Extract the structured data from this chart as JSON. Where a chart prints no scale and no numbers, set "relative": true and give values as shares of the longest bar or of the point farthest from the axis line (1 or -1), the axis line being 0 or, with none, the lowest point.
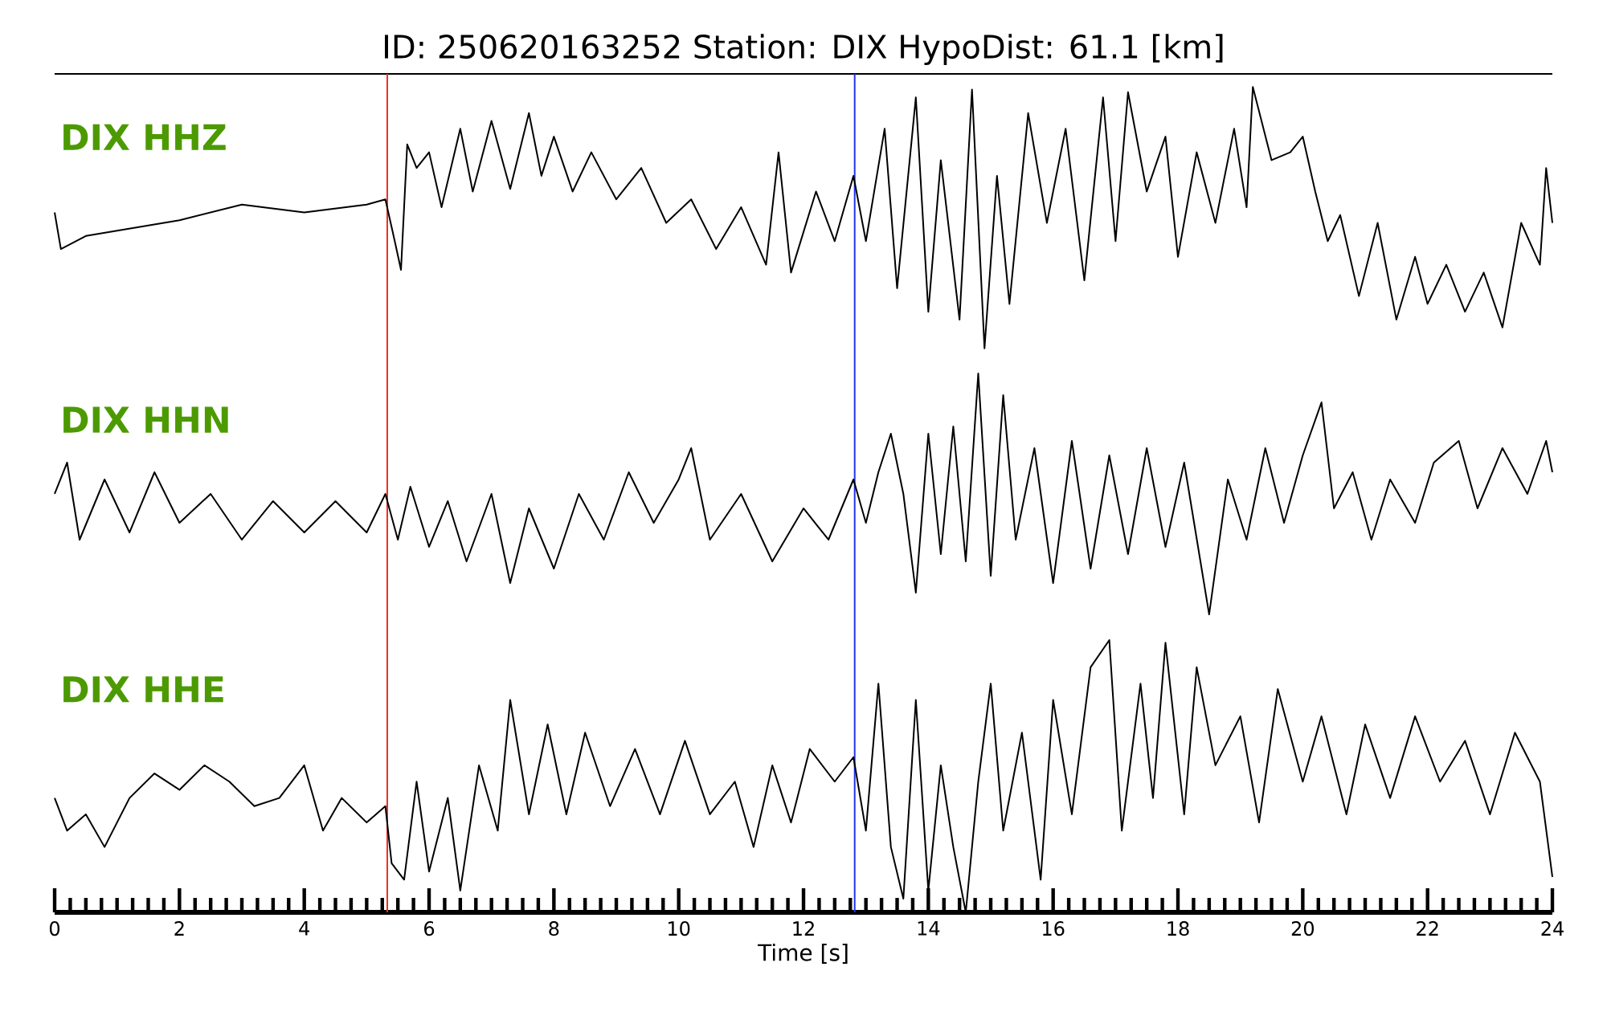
{
  "chart_data": [
    {
      "type": "line",
      "relative": true,
      "title": "ID: 250620163252   Station: DIX   HypoDist:    61.1 [km]",
      "xlim": [
        0,
        24
      ],
      "tick_labels": false,
      "series": [
        {
          "name": "DIX HHZ",
          "color": "#000000",
          "x": [
            0,
            0.1,
            0.5,
            1,
            2,
            3,
            4,
            5,
            5.3,
            5.45,
            5.55,
            5.65,
            5.8,
            6.0,
            6.2,
            6.5,
            6.7,
            7.0,
            7.3,
            7.6,
            7.8,
            8.0,
            8.3,
            8.6,
            9.0,
            9.4,
            9.8,
            10.2,
            10.6,
            11.0,
            11.4,
            11.6,
            11.8,
            12.2,
            12.5,
            12.8,
            13.0,
            13.3,
            13.5,
            13.8,
            14.0,
            14.2,
            14.5,
            14.7,
            14.9,
            15.1,
            15.3,
            15.6,
            15.9,
            16.2,
            16.5,
            16.8,
            17.0,
            17.2,
            17.5,
            17.8,
            18.0,
            18.3,
            18.6,
            18.9,
            19.1,
            19.2,
            19.5,
            19.8,
            20.0,
            20.2,
            20.4,
            20.6,
            20.9,
            21.2,
            21.5,
            21.8,
            22.0,
            22.3,
            22.6,
            22.9,
            23.2,
            23.5,
            23.8,
            23.9,
            24.0
          ],
          "values": [
            0.52,
            0.38,
            0.43,
            0.45,
            0.49,
            0.55,
            0.52,
            0.55,
            0.57,
            0.41,
            0.3,
            0.78,
            0.69,
            0.75,
            0.54,
            0.84,
            0.6,
            0.87,
            0.61,
            0.9,
            0.66,
            0.81,
            0.6,
            0.75,
            0.57,
            0.69,
            0.48,
            0.57,
            0.38,
            0.54,
            0.32,
            0.75,
            0.29,
            0.6,
            0.41,
            0.66,
            0.41,
            0.84,
            0.23,
            0.96,
            0.14,
            0.72,
            0.11,
            0.99,
            0,
            0.66,
            0.17,
            0.9,
            0.48,
            0.84,
            0.26,
            0.96,
            0.41,
            0.98,
            0.6,
            0.81,
            0.35,
            0.75,
            0.48,
            0.84,
            0.54,
            1,
            0.72,
            0.75,
            0.81,
            0.6,
            0.41,
            0.51,
            0.2,
            0.48,
            0.11,
            0.35,
            0.17,
            0.32,
            0.14,
            0.29,
            0.08,
            0.48,
            0.32,
            0.69,
            0.48
          ]
        }
      ],
      "ref_lines": [
        {
          "axis": "x",
          "value": 5.33,
          "color": "#e8302a"
        },
        {
          "axis": "x",
          "value": 12.82,
          "color": "#2233ee"
        }
      ]
    },
    {
      "type": "line",
      "relative": true,
      "xlim": [
        0,
        24
      ],
      "tick_labels": false,
      "series": [
        {
          "name": "DIX HHN",
          "color": "#000000",
          "x": [
            0,
            0.2,
            0.4,
            0.8,
            1.2,
            1.6,
            2.0,
            2.5,
            3.0,
            3.5,
            4.0,
            4.5,
            5.0,
            5.3,
            5.5,
            5.7,
            6.0,
            6.3,
            6.6,
            7.0,
            7.3,
            7.6,
            8.0,
            8.4,
            8.8,
            9.2,
            9.6,
            10.0,
            10.2,
            10.5,
            11.0,
            11.5,
            12.0,
            12.4,
            12.8,
            13.0,
            13.2,
            13.4,
            13.6,
            13.8,
            14.0,
            14.2,
            14.4,
            14.6,
            14.8,
            15.0,
            15.2,
            15.4,
            15.7,
            16.0,
            16.3,
            16.6,
            16.9,
            17.2,
            17.5,
            17.8,
            18.1,
            18.5,
            18.8,
            19.1,
            19.4,
            19.7,
            20.0,
            20.3,
            20.5,
            20.8,
            21.1,
            21.4,
            21.8,
            22.1,
            22.5,
            22.8,
            23.2,
            23.6,
            23.9,
            24.0
          ],
          "values": [
            0.5,
            0.63,
            0.31,
            0.56,
            0.34,
            0.59,
            0.38,
            0.5,
            0.31,
            0.47,
            0.34,
            0.47,
            0.34,
            0.5,
            0.31,
            0.53,
            0.28,
            0.47,
            0.22,
            0.5,
            0.13,
            0.44,
            0.19,
            0.5,
            0.31,
            0.59,
            0.38,
            0.56,
            0.69,
            0.31,
            0.5,
            0.22,
            0.44,
            0.31,
            0.56,
            0.38,
            0.59,
            0.75,
            0.5,
            0.09,
            0.75,
            0.25,
            0.78,
            0.22,
            1,
            0.16,
            0.91,
            0.31,
            0.69,
            0.13,
            0.72,
            0.19,
            0.66,
            0.25,
            0.69,
            0.28,
            0.63,
            0,
            0.56,
            0.31,
            0.69,
            0.38,
            0.66,
            0.88,
            0.44,
            0.59,
            0.31,
            0.56,
            0.38,
            0.63,
            0.72,
            0.44,
            0.69,
            0.5,
            0.72,
            0.59
          ]
        }
      ],
      "ref_lines": [
        {
          "axis": "x",
          "value": 5.33,
          "color": "#e8302a"
        },
        {
          "axis": "x",
          "value": 12.82,
          "color": "#2233ee"
        }
      ]
    },
    {
      "type": "line",
      "relative": true,
      "xlabel": "Time [s]",
      "xlim": [
        0,
        24
      ],
      "tick_labels": "x",
      "xticks": [
        0,
        {
          "value": 0.25,
          "label": null
        },
        {
          "value": 0.5,
          "label": null
        },
        {
          "value": 0.75,
          "label": null
        },
        {
          "value": 1,
          "label": null
        },
        {
          "value": 1.25,
          "label": null
        },
        {
          "value": 1.5,
          "label": null
        },
        {
          "value": 1.75,
          "label": null
        },
        2,
        {
          "value": 2.25,
          "label": null
        },
        {
          "value": 2.5,
          "label": null
        },
        {
          "value": 2.75,
          "label": null
        },
        {
          "value": 3,
          "label": null
        },
        {
          "value": 3.25,
          "label": null
        },
        {
          "value": 3.5,
          "label": null
        },
        {
          "value": 3.75,
          "label": null
        },
        4,
        {
          "value": 4.25,
          "label": null
        },
        {
          "value": 4.5,
          "label": null
        },
        {
          "value": 4.75,
          "label": null
        },
        {
          "value": 5,
          "label": null
        },
        {
          "value": 5.25,
          "label": null
        },
        {
          "value": 5.5,
          "label": null
        },
        {
          "value": 5.75,
          "label": null
        },
        6,
        {
          "value": 6.25,
          "label": null
        },
        {
          "value": 6.5,
          "label": null
        },
        {
          "value": 6.75,
          "label": null
        },
        {
          "value": 7,
          "label": null
        },
        {
          "value": 7.25,
          "label": null
        },
        {
          "value": 7.5,
          "label": null
        },
        {
          "value": 7.75,
          "label": null
        },
        8,
        {
          "value": 8.25,
          "label": null
        },
        {
          "value": 8.5,
          "label": null
        },
        {
          "value": 8.75,
          "label": null
        },
        {
          "value": 9,
          "label": null
        },
        {
          "value": 9.25,
          "label": null
        },
        {
          "value": 9.5,
          "label": null
        },
        {
          "value": 9.75,
          "label": null
        },
        10,
        {
          "value": 10.25,
          "label": null
        },
        {
          "value": 10.5,
          "label": null
        },
        {
          "value": 10.75,
          "label": null
        },
        {
          "value": 11,
          "label": null
        },
        {
          "value": 11.25,
          "label": null
        },
        {
          "value": 11.5,
          "label": null
        },
        {
          "value": 11.75,
          "label": null
        },
        12,
        {
          "value": 12.25,
          "label": null
        },
        {
          "value": 12.5,
          "label": null
        },
        {
          "value": 12.75,
          "label": null
        },
        {
          "value": 13,
          "label": null
        },
        {
          "value": 13.25,
          "label": null
        },
        {
          "value": 13.5,
          "label": null
        },
        {
          "value": 13.75,
          "label": null
        },
        14,
        {
          "value": 14.25,
          "label": null
        },
        {
          "value": 14.5,
          "label": null
        },
        {
          "value": 14.75,
          "label": null
        },
        {
          "value": 15,
          "label": null
        },
        {
          "value": 15.25,
          "label": null
        },
        {
          "value": 15.5,
          "label": null
        },
        {
          "value": 15.75,
          "label": null
        },
        16,
        {
          "value": 16.25,
          "label": null
        },
        {
          "value": 16.5,
          "label": null
        },
        {
          "value": 16.75,
          "label": null
        },
        {
          "value": 17,
          "label": null
        },
        {
          "value": 17.25,
          "label": null
        },
        {
          "value": 17.5,
          "label": null
        },
        {
          "value": 17.75,
          "label": null
        },
        18,
        {
          "value": 18.25,
          "label": null
        },
        {
          "value": 18.5,
          "label": null
        },
        {
          "value": 18.75,
          "label": null
        },
        {
          "value": 19,
          "label": null
        },
        {
          "value": 19.25,
          "label": null
        },
        {
          "value": 19.5,
          "label": null
        },
        {
          "value": 19.75,
          "label": null
        },
        20,
        {
          "value": 20.25,
          "label": null
        },
        {
          "value": 20.5,
          "label": null
        },
        {
          "value": 20.75,
          "label": null
        },
        {
          "value": 21,
          "label": null
        },
        {
          "value": 21.25,
          "label": null
        },
        {
          "value": 21.5,
          "label": null
        },
        {
          "value": 21.75,
          "label": null
        },
        22,
        {
          "value": 22.25,
          "label": null
        },
        {
          "value": 22.5,
          "label": null
        },
        {
          "value": 22.75,
          "label": null
        },
        {
          "value": 23,
          "label": null
        },
        {
          "value": 23.25,
          "label": null
        },
        {
          "value": 23.5,
          "label": null
        },
        {
          "value": 23.75,
          "label": null
        },
        24
      ],
      "series": [
        {
          "name": "DIX HHE",
          "color": "#000000",
          "x": [
            0,
            0.2,
            0.5,
            0.8,
            1.2,
            1.6,
            2.0,
            2.4,
            2.8,
            3.2,
            3.6,
            4.0,
            4.3,
            4.6,
            5.0,
            5.3,
            5.4,
            5.6,
            5.8,
            6.0,
            6.3,
            6.5,
            6.8,
            7.1,
            7.3,
            7.6,
            7.9,
            8.2,
            8.5,
            8.9,
            9.3,
            9.7,
            10.1,
            10.5,
            10.9,
            11.2,
            11.5,
            11.8,
            12.1,
            12.5,
            12.8,
            13.0,
            13.2,
            13.4,
            13.6,
            13.8,
            14.0,
            14.2,
            14.4,
            14.6,
            14.8,
            15.0,
            15.2,
            15.5,
            15.8,
            16.0,
            16.3,
            16.6,
            16.9,
            17.1,
            17.4,
            17.6,
            17.8,
            18.1,
            18.3,
            18.6,
            19.0,
            19.3,
            19.6,
            20.0,
            20.3,
            20.7,
            21.0,
            21.4,
            21.8,
            22.2,
            22.6,
            23.0,
            23.4,
            23.8,
            24.0
          ],
          "values": [
            0.42,
            0.3,
            0.36,
            0.24,
            0.42,
            0.51,
            0.45,
            0.54,
            0.48,
            0.39,
            0.42,
            0.54,
            0.3,
            0.42,
            0.33,
            0.39,
            0.18,
            0.12,
            0.48,
            0.15,
            0.42,
            0.08,
            0.54,
            0.3,
            0.78,
            0.36,
            0.69,
            0.36,
            0.66,
            0.39,
            0.6,
            0.36,
            0.63,
            0.36,
            0.48,
            0.24,
            0.54,
            0.33,
            0.6,
            0.48,
            0.57,
            0.3,
            0.84,
            0.24,
            0.05,
            0.78,
            0.08,
            0.54,
            0.24,
            0,
            0.48,
            0.84,
            0.3,
            0.66,
            0.12,
            0.78,
            0.36,
            0.9,
            1,
            0.3,
            0.84,
            0.42,
            0.99,
            0.36,
            0.9,
            0.54,
            0.72,
            0.33,
            0.82,
            0.48,
            0.72,
            0.36,
            0.69,
            0.42,
            0.72,
            0.48,
            0.63,
            0.36,
            0.66,
            0.48,
            0.13
          ]
        }
      ],
      "ref_lines": [
        {
          "axis": "x",
          "value": 5.33,
          "color": "#e8302a"
        },
        {
          "axis": "x",
          "value": 12.82,
          "color": "#2233ee"
        }
      ]
    }
  ]
}
